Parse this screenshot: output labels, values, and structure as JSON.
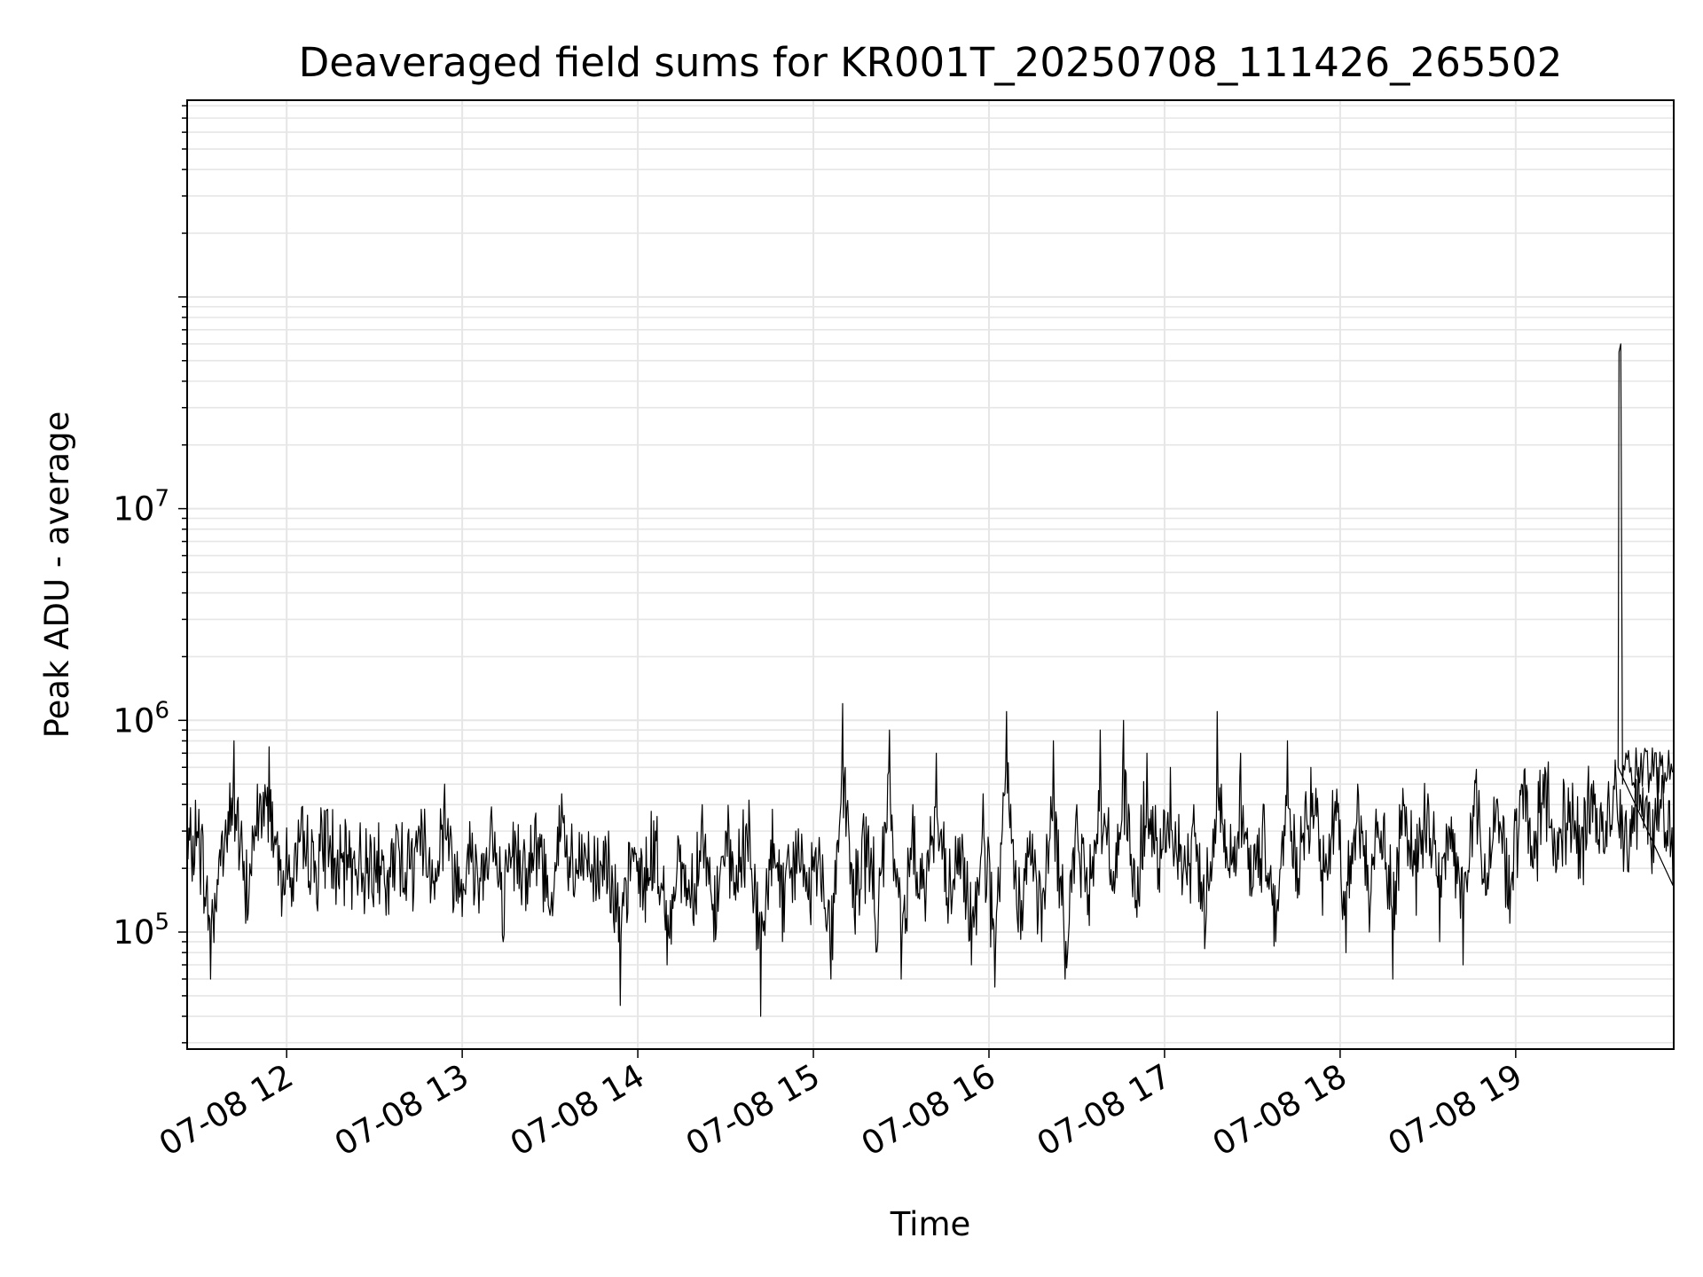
{
  "chart_data": {
    "type": "line",
    "title": "Deaveraged field sums for KR001T_20250708_111426_265502",
    "xlabel": "Time",
    "ylabel": "Peak ADU - average",
    "yscale": "log",
    "grid": true,
    "line_color": "#000000",
    "grid_color": "#e6e6e6",
    "xlim": [
      "2025-07-08 11:26",
      "2025-07-08 19:54"
    ],
    "ylim": [
      28000,
      850000000
    ],
    "x_ticks": [
      {
        "value": "2025-07-08 12:00",
        "label": "07-08 12"
      },
      {
        "value": "2025-07-08 13:00",
        "label": "07-08 13"
      },
      {
        "value": "2025-07-08 14:00",
        "label": "07-08 14"
      },
      {
        "value": "2025-07-08 15:00",
        "label": "07-08 15"
      },
      {
        "value": "2025-07-08 16:00",
        "label": "07-08 16"
      },
      {
        "value": "2025-07-08 17:00",
        "label": "07-08 17"
      },
      {
        "value": "2025-07-08 18:00",
        "label": "07-08 18"
      },
      {
        "value": "2025-07-08 19:00",
        "label": "07-08 19"
      }
    ],
    "y_ticks": [
      {
        "value": 100000,
        "base": "10",
        "exp": "5"
      },
      {
        "value": 1000000,
        "base": "10",
        "exp": "6"
      },
      {
        "value": 10000000,
        "base": "10",
        "exp": "7"
      }
    ],
    "series": [
      {
        "x": [
          "2025-07-08 11:26",
          "2025-07-08 11:30",
          "2025-07-08 11:34",
          "2025-07-08 11:38",
          "2025-07-08 11:42",
          "2025-07-08 11:46",
          "2025-07-08 11:50",
          "2025-07-08 11:54",
          "2025-07-08 11:58",
          "2025-07-08 12:02",
          "2025-07-08 12:06",
          "2025-07-08 12:10",
          "2025-07-08 12:14",
          "2025-07-08 12:18",
          "2025-07-08 12:22",
          "2025-07-08 12:26",
          "2025-07-08 12:30",
          "2025-07-08 12:34",
          "2025-07-08 12:38",
          "2025-07-08 12:42",
          "2025-07-08 12:46",
          "2025-07-08 12:50",
          "2025-07-08 12:54",
          "2025-07-08 12:58",
          "2025-07-08 13:02",
          "2025-07-08 13:06",
          "2025-07-08 13:10",
          "2025-07-08 13:14",
          "2025-07-08 13:18",
          "2025-07-08 13:22",
          "2025-07-08 13:26",
          "2025-07-08 13:30",
          "2025-07-08 13:34",
          "2025-07-08 13:38",
          "2025-07-08 13:42",
          "2025-07-08 13:46",
          "2025-07-08 13:50",
          "2025-07-08 13:54",
          "2025-07-08 13:58",
          "2025-07-08 14:02",
          "2025-07-08 14:06",
          "2025-07-08 14:10",
          "2025-07-08 14:14",
          "2025-07-08 14:18",
          "2025-07-08 14:22",
          "2025-07-08 14:26",
          "2025-07-08 14:30",
          "2025-07-08 14:34",
          "2025-07-08 14:38",
          "2025-07-08 14:42",
          "2025-07-08 14:46",
          "2025-07-08 14:50",
          "2025-07-08 14:54",
          "2025-07-08 14:58",
          "2025-07-08 15:02",
          "2025-07-08 15:06",
          "2025-07-08 15:10",
          "2025-07-08 15:14",
          "2025-07-08 15:18",
          "2025-07-08 15:22",
          "2025-07-08 15:26",
          "2025-07-08 15:30",
          "2025-07-08 15:34",
          "2025-07-08 15:38",
          "2025-07-08 15:42",
          "2025-07-08 15:46",
          "2025-07-08 15:50",
          "2025-07-08 15:54",
          "2025-07-08 15:58",
          "2025-07-08 16:02",
          "2025-07-08 16:06",
          "2025-07-08 16:10",
          "2025-07-08 16:14",
          "2025-07-08 16:18",
          "2025-07-08 16:22",
          "2025-07-08 16:26",
          "2025-07-08 16:30",
          "2025-07-08 16:34",
          "2025-07-08 16:38",
          "2025-07-08 16:42",
          "2025-07-08 16:46",
          "2025-07-08 16:50",
          "2025-07-08 16:54",
          "2025-07-08 16:58",
          "2025-07-08 17:02",
          "2025-07-08 17:06",
          "2025-07-08 17:10",
          "2025-07-08 17:14",
          "2025-07-08 17:18",
          "2025-07-08 17:22",
          "2025-07-08 17:26",
          "2025-07-08 17:30",
          "2025-07-08 17:34",
          "2025-07-08 17:38",
          "2025-07-08 17:42",
          "2025-07-08 17:46",
          "2025-07-08 17:50",
          "2025-07-08 17:54",
          "2025-07-08 17:58",
          "2025-07-08 18:02",
          "2025-07-08 18:06",
          "2025-07-08 18:10",
          "2025-07-08 18:14",
          "2025-07-08 18:18",
          "2025-07-08 18:22",
          "2025-07-08 18:26",
          "2025-07-08 18:30",
          "2025-07-08 18:34",
          "2025-07-08 18:38",
          "2025-07-08 18:42",
          "2025-07-08 18:46",
          "2025-07-08 18:50",
          "2025-07-08 18:54",
          "2025-07-08 18:58",
          "2025-07-08 19:02",
          "2025-07-08 19:06",
          "2025-07-08 19:10",
          "2025-07-08 19:14",
          "2025-07-08 19:18",
          "2025-07-08 19:22",
          "2025-07-08 19:26",
          "2025-07-08 19:30",
          "2025-07-08 19:34",
          "2025-07-08 19:38",
          "2025-07-08 19:42",
          "2025-07-08 19:46",
          "2025-07-08 19:50",
          "2025-07-08 19:54"
        ],
        "y": [
          250000,
          380000,
          60000,
          300000,
          800000,
          110000,
          500000,
          750000,
          220000,
          180000,
          300000,
          200000,
          380000,
          160000,
          250000,
          190000,
          280000,
          120000,
          300000,
          200000,
          380000,
          170000,
          500000,
          140000,
          260000,
          180000,
          390000,
          90000,
          300000,
          200000,
          280000,
          120000,
          450000,
          150000,
          250000,
          170000,
          300000,
          45000,
          250000,
          160000,
          300000,
          70000,
          270000,
          130000,
          400000,
          90000,
          300000,
          160000,
          420000,
          40000,
          380000,
          100000,
          300000,
          150000,
          280000,
          60000,
          1200000,
          120000,
          350000,
          90000,
          900000,
          60000,
          400000,
          150000,
          700000,
          110000,
          280000,
          70000,
          450000,
          55000,
          1100000,
          100000,
          300000,
          90000,
          800000,
          60000,
          400000,
          150000,
          900000,
          160000,
          1000000,
          130000,
          700000,
          200000,
          600000,
          150000,
          400000,
          100000,
          1100000,
          200000,
          700000,
          160000,
          400000,
          90000,
          800000,
          150000,
          600000,
          120000,
          350000,
          80000,
          500000,
          100000,
          300000,
          60000,
          400000,
          120000,
          450000,
          90000,
          350000,
          70000,
          520000,
          150000,
          380000,
          110000,
          500000,
          200000,
          600000,
          200000,
          480000,
          180000,
          500000,
          240000,
          650000,
          250000,
          600000,
          280000,
          550000,
          230000
        ],
        "values_note": ""
      }
    ]
  }
}
